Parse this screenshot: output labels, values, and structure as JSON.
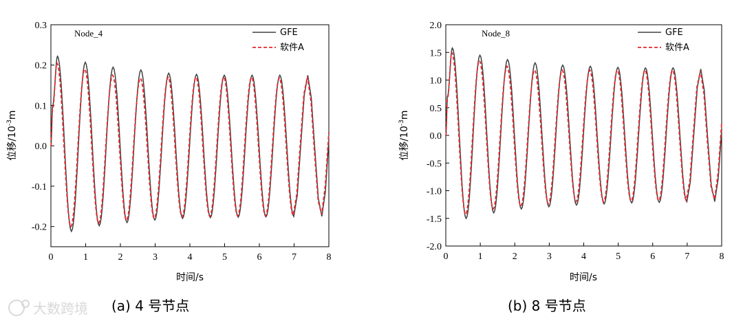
{
  "watermark": "大数跨境",
  "charts": [
    {
      "caption": "(a) 4 号节点",
      "node_label": "Node_4",
      "xlabel": "时间/s",
      "ylabel": "位移/10",
      "ylabel_sup": "-3",
      "ylabel_unit": "m",
      "legend": [
        "GFE",
        "软件A"
      ],
      "x_ticks": [
        "0",
        "1",
        "2",
        "3",
        "4",
        "5",
        "6",
        "7",
        "8"
      ],
      "y_ticks": [
        "-0.2",
        "-0.1",
        "0.0",
        "0.1",
        "0.2",
        "0.3"
      ]
    },
    {
      "caption": "(b) 8 号节点",
      "node_label": "Node_8",
      "xlabel": "时间/s",
      "ylabel": "位移/10",
      "ylabel_sup": "-3",
      "ylabel_unit": "m",
      "legend": [
        "GFE",
        "软件A"
      ],
      "x_ticks": [
        "0",
        "1",
        "2",
        "3",
        "4",
        "5",
        "6",
        "7",
        "8"
      ],
      "y_ticks": [
        "-2.0",
        "-1.5",
        "-1.0",
        "-0.5",
        "0.0",
        "0.5",
        "1.0",
        "1.5",
        "2.0"
      ]
    }
  ],
  "chart_data": [
    {
      "type": "line",
      "title": "Node_4",
      "xlabel": "时间/s",
      "ylabel": "位移/10^-3 m",
      "xlim": [
        0,
        8
      ],
      "ylim": [
        -0.25,
        0.3
      ],
      "series": [
        {
          "name": "GFE",
          "color": "#404040",
          "style": "solid",
          "peaks": [
            0.222,
            0.207,
            0.195,
            0.188,
            0.18,
            0.177,
            0.175,
            0.175,
            0.175
          ],
          "troughs": [
            -0.212,
            -0.198,
            -0.19,
            -0.184,
            -0.18,
            -0.178,
            -0.177,
            -0.176,
            -0.175
          ]
        },
        {
          "name": "软件A",
          "color": "#e8262a",
          "style": "dashed",
          "peaks": [
            0.205,
            0.19,
            0.175,
            0.168,
            0.17,
            0.17,
            0.17,
            0.17,
            0.168
          ],
          "troughs": [
            -0.2,
            -0.192,
            -0.185,
            -0.18,
            -0.176,
            -0.175,
            -0.174,
            -0.174,
            -0.172
          ]
        }
      ]
    },
    {
      "type": "line",
      "title": "Node_8",
      "xlabel": "时间/s",
      "ylabel": "位移/10^-3 m",
      "xlim": [
        0,
        8
      ],
      "ylim": [
        -2.0,
        2.0
      ],
      "series": [
        {
          "name": "GFE",
          "color": "#404040",
          "style": "solid",
          "peaks": [
            1.58,
            1.45,
            1.37,
            1.31,
            1.27,
            1.25,
            1.23,
            1.22,
            1.22
          ],
          "troughs": [
            -1.5,
            -1.4,
            -1.33,
            -1.29,
            -1.26,
            -1.24,
            -1.22,
            -1.21,
            -1.2
          ]
        },
        {
          "name": "软件A",
          "color": "#e8262a",
          "style": "dashed",
          "peaks": [
            1.5,
            1.35,
            1.25,
            1.18,
            1.18,
            1.18,
            1.18,
            1.18,
            1.18
          ],
          "troughs": [
            -1.43,
            -1.33,
            -1.28,
            -1.24,
            -1.2,
            -1.2,
            -1.19,
            -1.18,
            -1.17
          ]
        }
      ]
    }
  ]
}
